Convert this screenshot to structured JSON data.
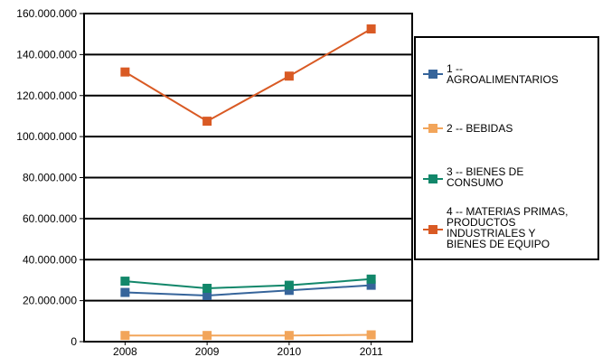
{
  "chart_data": {
    "type": "line",
    "title": "",
    "xlabel": "",
    "ylabel": "",
    "categories": [
      "2008",
      "2009",
      "2010",
      "2011"
    ],
    "ylim": [
      0,
      160000000
    ],
    "yticks": [
      0,
      20000000,
      40000000,
      60000000,
      80000000,
      100000000,
      120000000,
      140000000,
      160000000
    ],
    "ytick_labels": [
      "0",
      "20.000.000",
      "40.000.000",
      "60.000.000",
      "80.000.000",
      "100.000.000",
      "120.000.000",
      "140.000.000",
      "160.000.000"
    ],
    "grid": true,
    "legend_position": "right",
    "series": [
      {
        "name": "1 -- AGROALIMENTARIOS",
        "color": "#36649A",
        "values": [
          24000000,
          22500000,
          25000000,
          27500000
        ]
      },
      {
        "name": "2 -- BEBIDAS",
        "color": "#F2A55A",
        "values": [
          3000000,
          3000000,
          3000000,
          3300000
        ]
      },
      {
        "name": "3 -- BIENES DE CONSUMO",
        "color": "#12876A",
        "values": [
          29500000,
          26000000,
          27500000,
          30500000
        ]
      },
      {
        "name": "4 -- MATERIAS PRIMAS, PRODUCTOS INDUSTRIALES Y BIENES DE EQUIPO",
        "color": "#D95A24",
        "values": [
          131500000,
          107500000,
          129500000,
          152500000
        ]
      }
    ]
  },
  "legend": {
    "items": [
      {
        "label": "1 --\nAGROALIMENTARIOS"
      },
      {
        "label": "2 -- BEBIDAS"
      },
      {
        "label": "3 -- BIENES DE\nCONSUMO"
      },
      {
        "label": "4 -- MATERIAS PRIMAS,\nPRODUCTOS\nINDUSTRIALES Y\nBIENES DE EQUIPO"
      }
    ]
  }
}
